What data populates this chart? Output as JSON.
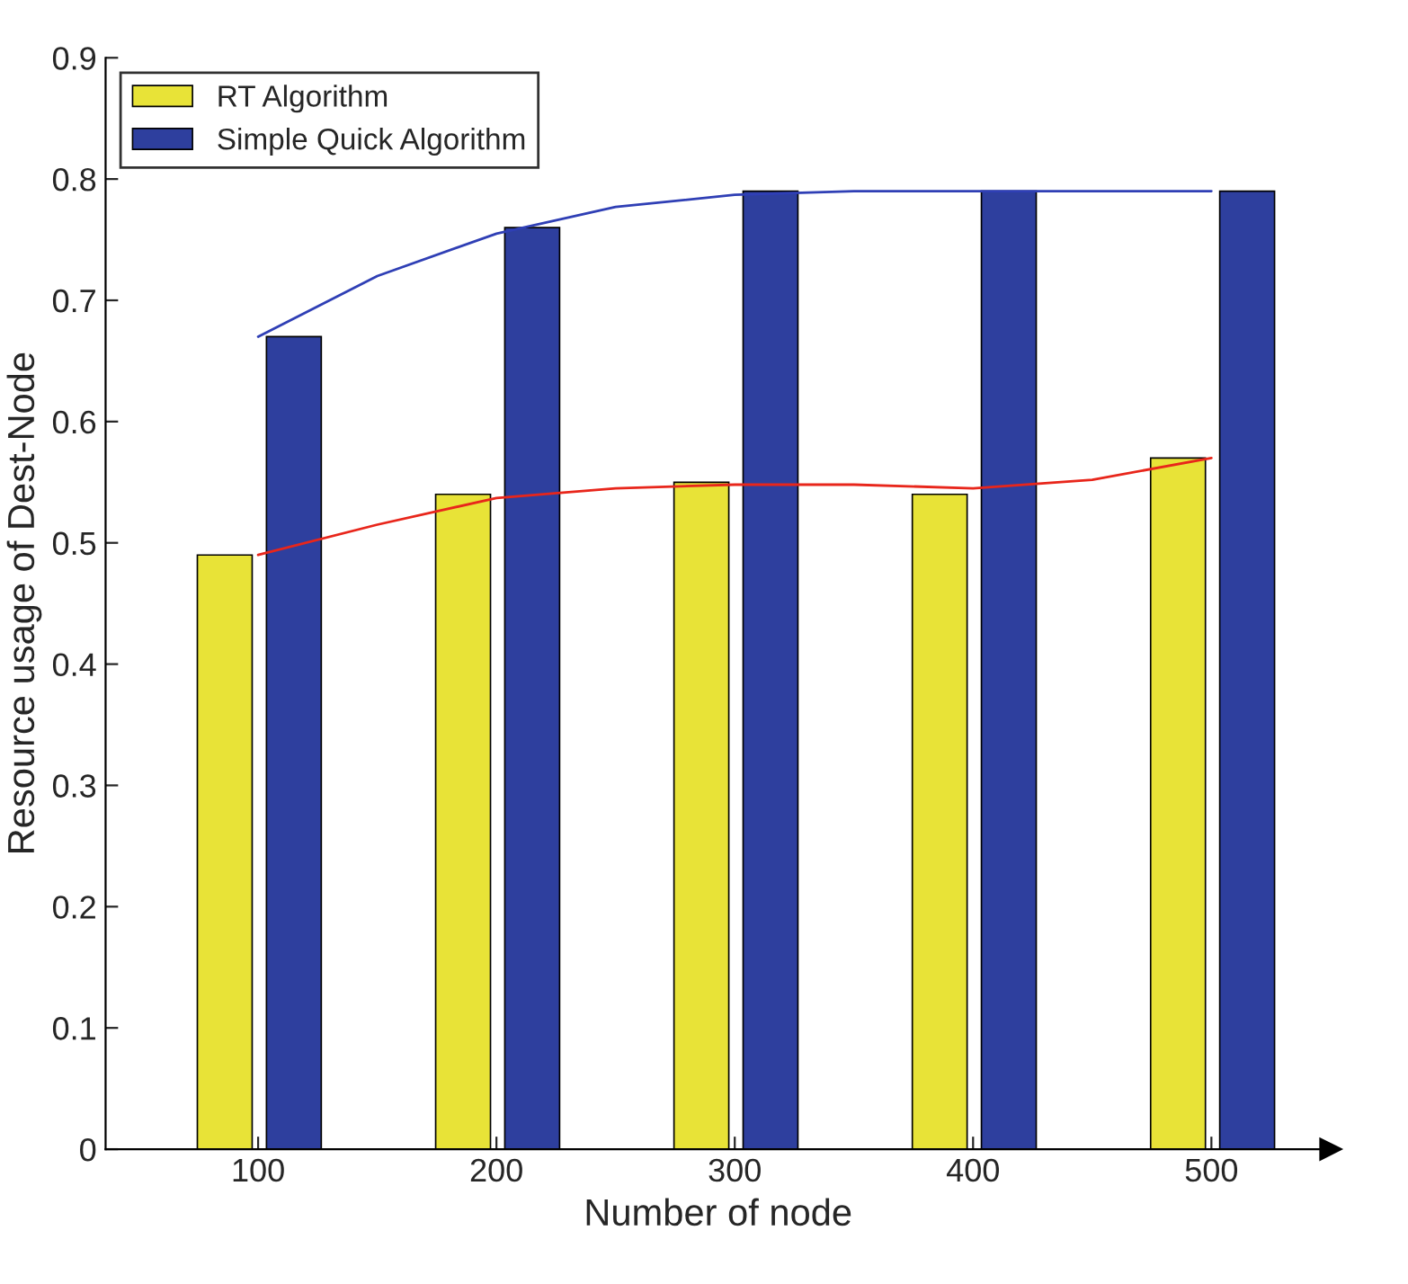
{
  "chart_data": {
    "type": "bar",
    "xlabel": "Number of node",
    "ylabel": "Resource usage of Dest-Node",
    "xlim": [
      36,
      550
    ],
    "xticks": [
      100,
      200,
      300,
      400,
      500
    ],
    "ylim": [
      0,
      0.9
    ],
    "yticks": [
      0,
      0.1,
      0.2,
      0.3,
      0.4,
      0.5,
      0.6,
      0.7,
      0.8,
      0.9
    ],
    "grid": false,
    "legend": "top left",
    "series": [
      {
        "name": "RT Algorithm",
        "color": "#e8e337",
        "x": [
          86,
          186,
          286,
          386,
          486
        ],
        "values": [
          0.49,
          0.54,
          0.55,
          0.54,
          0.57
        ]
      },
      {
        "name": "Simple Quick Algorithm",
        "color": "#2e3f9e",
        "x": [
          115,
          215,
          315,
          415,
          515
        ],
        "values": [
          0.67,
          0.76,
          0.79,
          0.79,
          0.79
        ]
      },
      {
        "type": "line",
        "color": "#e8261b",
        "x": [
          100,
          150,
          200,
          250,
          300,
          350,
          400,
          450,
          500
        ],
        "values": [
          0.49,
          0.515,
          0.537,
          0.545,
          0.548,
          0.548,
          0.545,
          0.552,
          0.57
        ]
      },
      {
        "type": "line",
        "color": "#2f3fb5",
        "x": [
          100,
          150,
          200,
          250,
          300,
          350,
          400,
          500
        ],
        "values": [
          0.67,
          0.72,
          0.755,
          0.777,
          0.787,
          0.79,
          0.79,
          0.79
        ]
      }
    ]
  }
}
